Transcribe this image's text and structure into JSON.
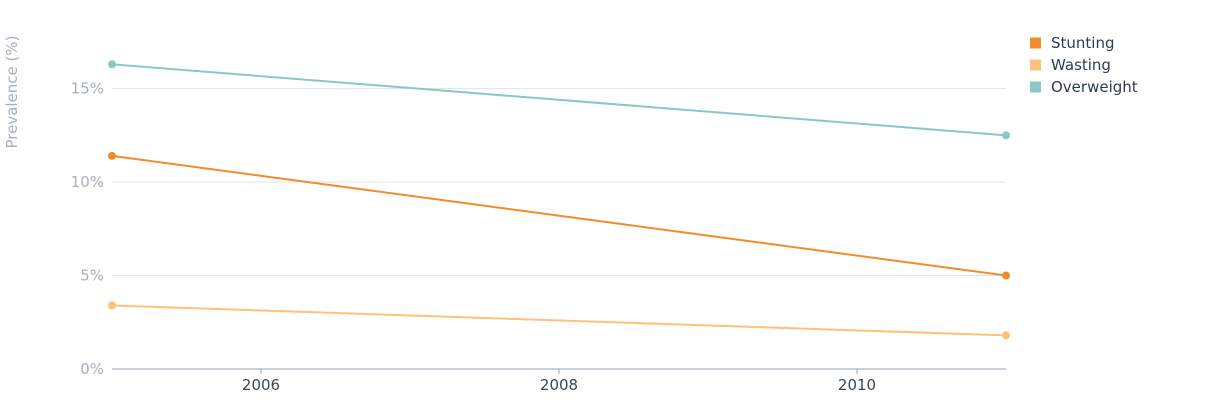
{
  "chart_data": {
    "type": "line",
    "ylabel": "Prevalence (%)",
    "xlabel": "",
    "x": [
      2005,
      2011
    ],
    "xlim": [
      2005,
      2011
    ],
    "ylim": [
      0,
      17.6
    ],
    "xticks": [
      {
        "value": 2006,
        "label": "2006"
      },
      {
        "value": 2008,
        "label": "2008"
      },
      {
        "value": 2010,
        "label": "2010"
      }
    ],
    "yticks": [
      {
        "value": 0,
        "label": "0%"
      },
      {
        "value": 5,
        "label": "5%"
      },
      {
        "value": 10,
        "label": "10%"
      },
      {
        "value": 15,
        "label": "15%"
      }
    ],
    "grid": true,
    "legend_position": "top-right",
    "series": [
      {
        "name": "Stunting",
        "color": "#f28c28",
        "values": [
          11.4,
          5.0
        ]
      },
      {
        "name": "Wasting",
        "color": "#fdc17c",
        "values": [
          3.4,
          1.8
        ]
      },
      {
        "name": "Overweight",
        "color": "#88c9c4",
        "values": [
          16.3,
          12.5
        ]
      }
    ]
  }
}
